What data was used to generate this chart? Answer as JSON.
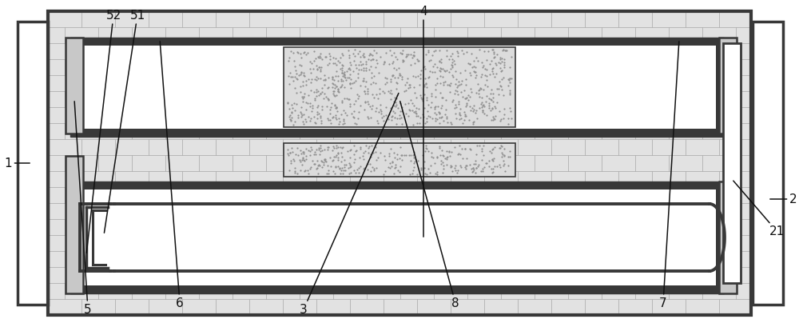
{
  "fig_w": 10.0,
  "fig_h": 4.1,
  "bg": "#ffffff",
  "dark": "#383838",
  "brick_bg": "#e2e2e2",
  "brick_line": "#b0b0b0",
  "white": "#ffffff",
  "lgray": "#c8c8c8",
  "pcm_bg": "#dcdcdc",
  "pcm_dot": "#909090",
  "ann_color": "#111111",
  "ann_fs": 11
}
